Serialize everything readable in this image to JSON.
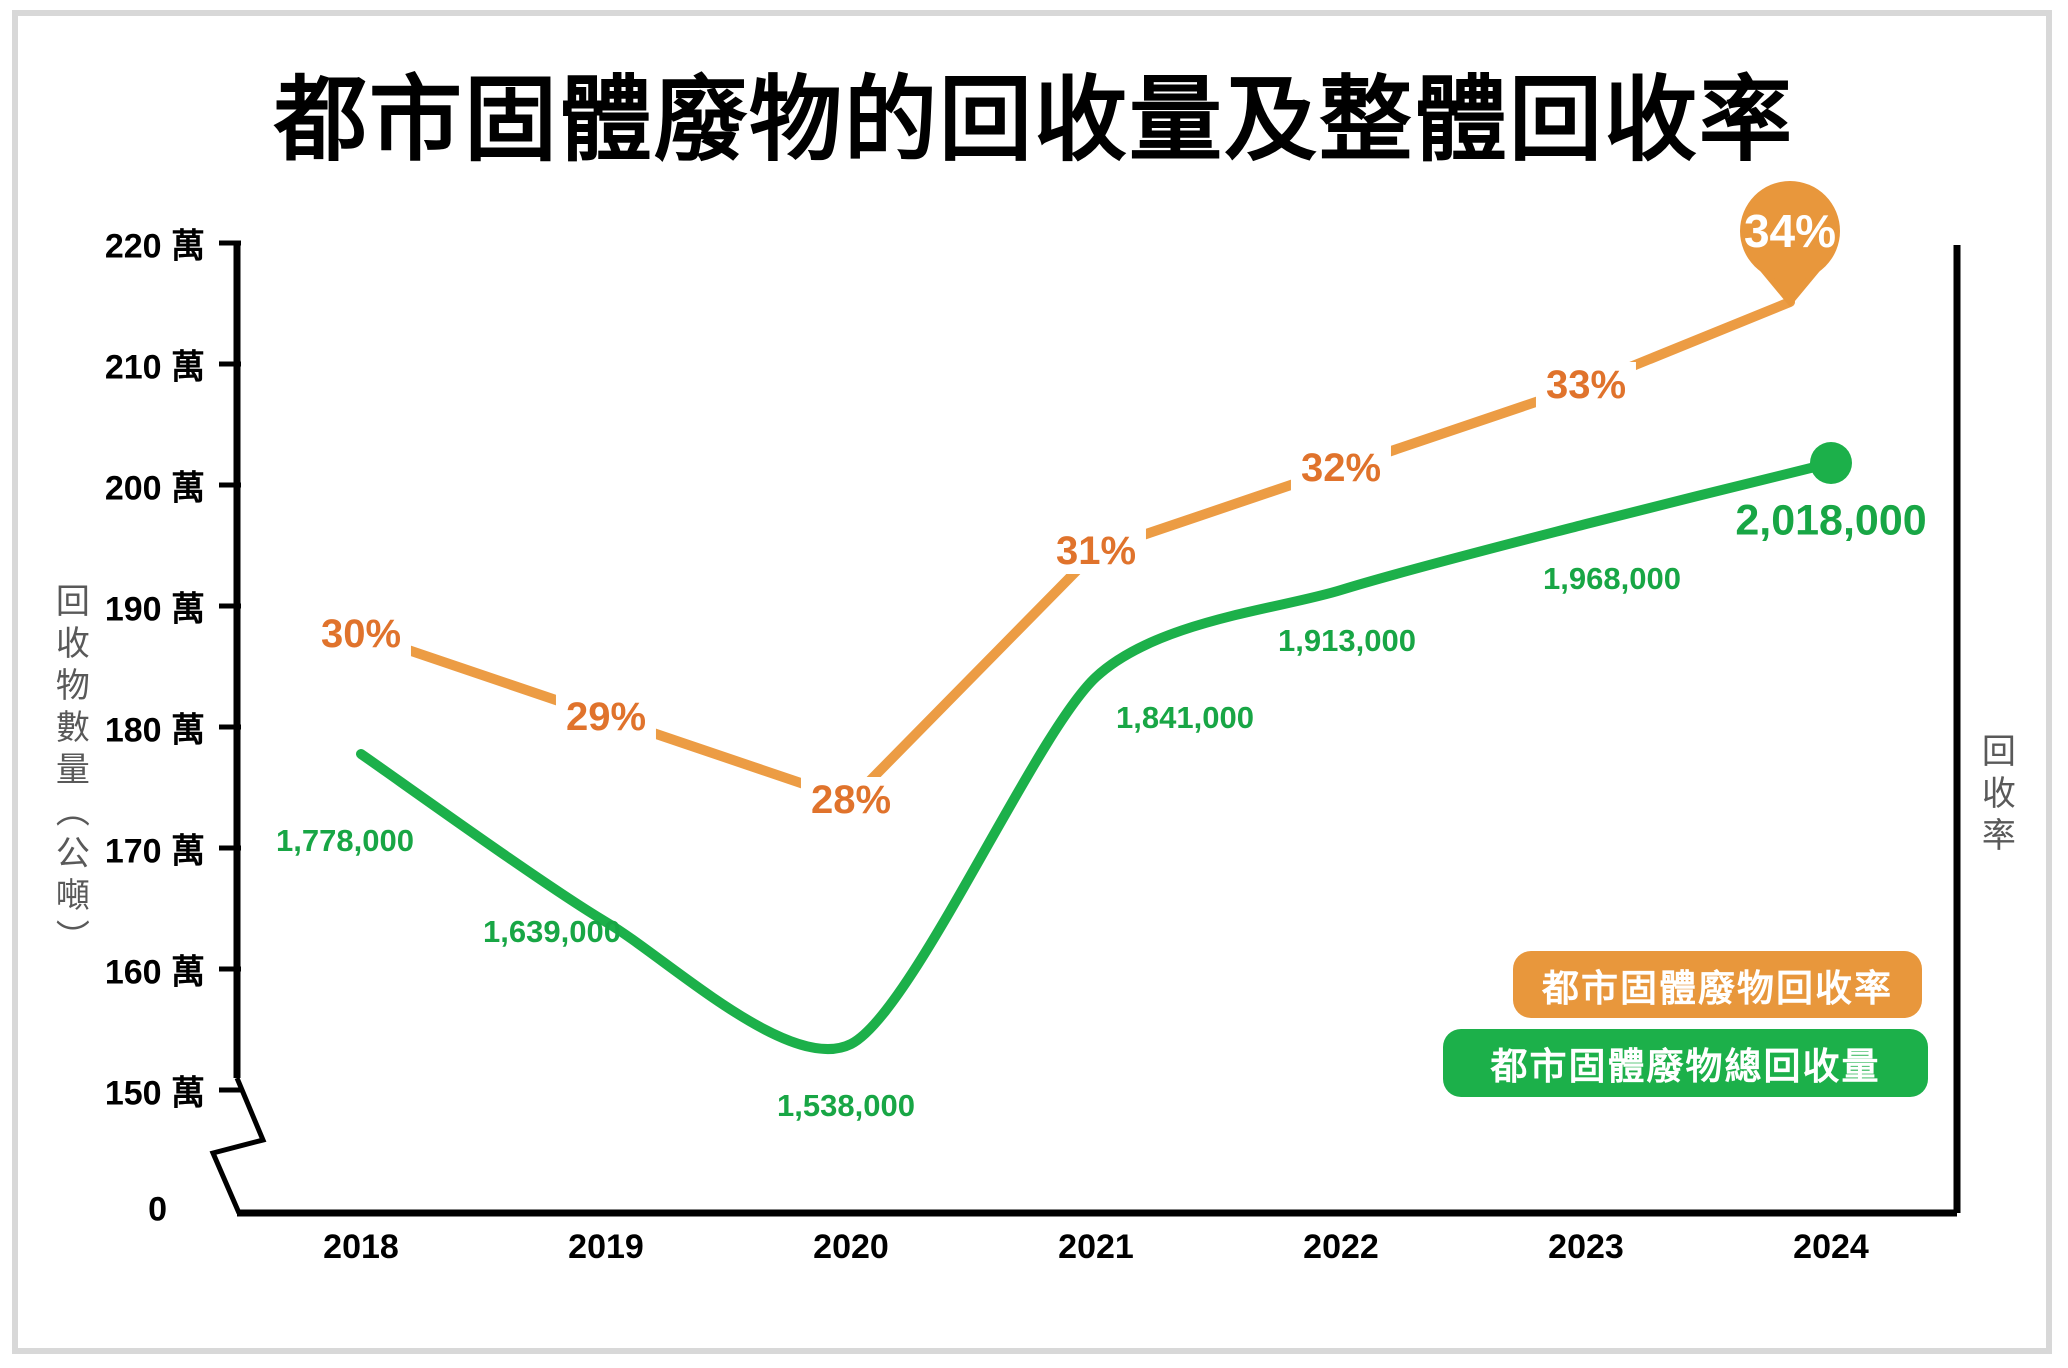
{
  "title": "都市固體廢物的回收量及整體回收率",
  "left_axis": {
    "title": "回收物數量（公噸）",
    "unit": "萬",
    "tick_labels": [
      "220 萬",
      "210 萬",
      "200 萬",
      "190 萬",
      "180 萬",
      "170 萬",
      "160 萬",
      "150 萬"
    ],
    "tick_values": [
      220,
      210,
      200,
      190,
      180,
      170,
      160,
      150
    ],
    "origin_label": "0",
    "axis_break": true
  },
  "right_axis": {
    "title": "回收率"
  },
  "x_axis": {
    "categories": [
      "2018",
      "2019",
      "2020",
      "2021",
      "2022",
      "2023",
      "2024"
    ]
  },
  "legend": [
    {
      "label": "都市固體廢物回收率",
      "color": "#E8973C"
    },
    {
      "label": "都市固體廢物總回收量",
      "color": "#1CB04A"
    }
  ],
  "colors": {
    "volume_line": "#1CB04A",
    "volume_label_text": "#18A645",
    "rate_line": "#EC9C44",
    "rate_label_text": "#E0732C",
    "balloon_fill": "#E8973C",
    "axis": "#000000",
    "axis_title_gray": "#595959",
    "frame_gray": "#d8d8d8"
  },
  "chart_data": {
    "type": "line",
    "title": "都市固體廢物的回收量及整體回收率",
    "categories": [
      "2018",
      "2019",
      "2020",
      "2021",
      "2022",
      "2023",
      "2024"
    ],
    "series": [
      {
        "name": "都市固體廢物總回收量",
        "axis": "left",
        "unit": "公噸",
        "color": "#1CB04A",
        "values": [
          1778000,
          1639000,
          1538000,
          1841000,
          1913000,
          1968000,
          2018000
        ],
        "labels": [
          "1,778,000",
          "1,639,000",
          "1,538,000",
          "1,841,000",
          "1,913,000",
          "1,968,000",
          "2,018,000"
        ],
        "end_marker": "dot"
      },
      {
        "name": "都市固體廢物回收率",
        "axis": "right",
        "unit": "%",
        "color": "#EC9C44",
        "values": [
          30,
          29,
          28,
          31,
          32,
          33,
          34
        ],
        "labels": [
          "30%",
          "29%",
          "28%",
          "31%",
          "32%",
          "33%",
          "34%"
        ],
        "end_marker": "balloon"
      }
    ],
    "left_axis_range_wan": [
      150,
      220
    ],
    "legend_position": "right-middle",
    "grid": false
  }
}
